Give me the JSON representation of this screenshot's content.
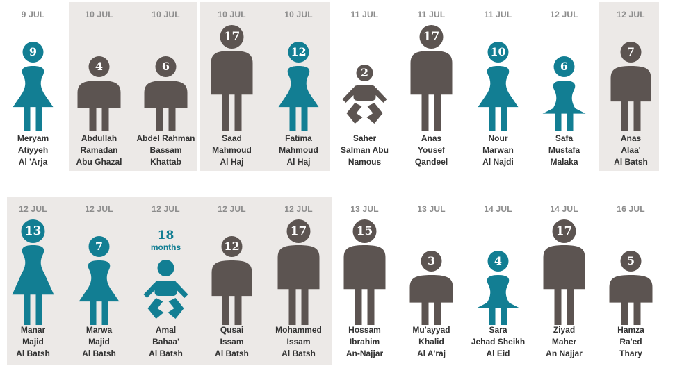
{
  "colors": {
    "female": "#127e93",
    "male": "#5c5451",
    "group_bg": "#ece9e7"
  },
  "row1": [
    {
      "date": "9 JUL",
      "age": "9",
      "gender": "female",
      "size": "medium",
      "name": [
        "Meryam",
        "Atiyyeh",
        "Al 'Arja"
      ]
    },
    {
      "date": "10 JUL",
      "age": "4",
      "gender": "male",
      "size": "small",
      "name": [
        "Abdullah",
        "Ramadan",
        "Abu Ghazal"
      ]
    },
    {
      "date": "10 JUL",
      "age": "6",
      "gender": "male",
      "size": "small",
      "name": [
        "Abdel Rahman",
        "Bassam",
        "Khattab"
      ]
    },
    {
      "date": "10 JUL",
      "age": "17",
      "gender": "male",
      "size": "large",
      "name": [
        "Saad",
        "Mahmoud",
        "Al Haj"
      ]
    },
    {
      "date": "10 JUL",
      "age": "12",
      "gender": "female",
      "size": "medium",
      "name": [
        "Fatima",
        "Mahmoud",
        "Al Haj"
      ]
    },
    {
      "date": "11 JUL",
      "age": "2",
      "gender": "male",
      "size": "baby",
      "name": [
        "Saher",
        "Salman Abu",
        "Namous"
      ]
    },
    {
      "date": "11 JUL",
      "age": "17",
      "gender": "male",
      "size": "large",
      "name": [
        "Anas",
        "Yousef",
        "Qandeel"
      ]
    },
    {
      "date": "11 JUL",
      "age": "10",
      "gender": "female",
      "size": "medium",
      "name": [
        "Nour",
        "Marwan",
        "Al Najdi"
      ]
    },
    {
      "date": "12 JUL",
      "age": "6",
      "gender": "female",
      "size": "small",
      "name": [
        "Safa",
        "Mustafa",
        "Malaka"
      ]
    },
    {
      "date": "12 JUL",
      "age": "7",
      "gender": "male",
      "size": "medium",
      "name": [
        "Anas",
        "Alaa'",
        "Al Batsh"
      ]
    }
  ],
  "row2": [
    {
      "date": "12 JUL",
      "age": "13",
      "gender": "female",
      "size": "large",
      "name": [
        "Manar",
        "Majid",
        "Al Batsh"
      ]
    },
    {
      "date": "12 JUL",
      "age": "7",
      "gender": "female",
      "size": "medium",
      "name": [
        "Marwa",
        "Majid",
        "Al Batsh"
      ]
    },
    {
      "date": "12 JUL",
      "age": "18",
      "age_unit": "months",
      "gender": "female",
      "size": "baby",
      "name": [
        "Amal",
        "Bahaa'",
        "Al Batsh"
      ]
    },
    {
      "date": "12 JUL",
      "age": "12",
      "gender": "male",
      "size": "medium",
      "name": [
        "Qusai",
        "Issam",
        "Al Batsh"
      ]
    },
    {
      "date": "12 JUL",
      "age": "17",
      "gender": "male",
      "size": "large",
      "name": [
        "Mohammed",
        "Issam",
        "Al Batsh"
      ]
    },
    {
      "date": "13 JUL",
      "age": "15",
      "gender": "male",
      "size": "large",
      "name": [
        "Hossam",
        "Ibrahim",
        "An-Najjar"
      ]
    },
    {
      "date": "13 JUL",
      "age": "3",
      "gender": "male",
      "size": "small",
      "name": [
        "Mu'ayyad",
        "Khalid",
        "Al A'raj"
      ]
    },
    {
      "date": "14 JUL",
      "age": "4",
      "gender": "female",
      "size": "small",
      "name": [
        "Sara",
        "Jehad Sheikh",
        "Al Eid"
      ]
    },
    {
      "date": "14 JUL",
      "age": "17",
      "gender": "male",
      "size": "large",
      "name": [
        "Ziyad",
        "Maher",
        "An Najjar"
      ]
    },
    {
      "date": "16 JUL",
      "age": "5",
      "gender": "male",
      "size": "small",
      "name": [
        "Hamza",
        "Ra'ed",
        "Thary"
      ]
    }
  ]
}
